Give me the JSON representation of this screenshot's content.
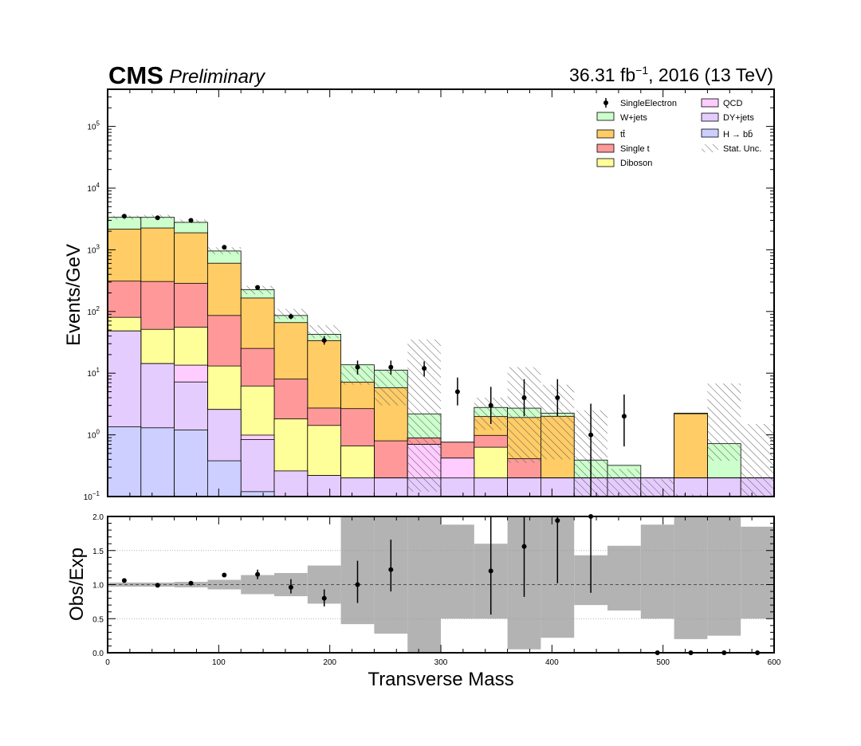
{
  "header": {
    "experiment": "CMS",
    "status": "Preliminary",
    "lumi_value": "36.31 fb",
    "lumi_exp": "−1",
    "lumi_rest": ", 2016 (13 TeV)"
  },
  "legend": {
    "data": "SingleElectron",
    "wjets": "W+jets",
    "ttbar": "tt̄",
    "single_t": "Single t",
    "diboson": "Diboson",
    "qcd": "QCD",
    "dyjets": "DY+jets",
    "hbb": "H → bb̄",
    "stat": "Stat. Unc."
  },
  "colors": {
    "hbb": "#cccfff",
    "dyjets": "#e5ccff",
    "qcd": "#ffccff",
    "diboson": "#ffff99",
    "single_t": "#ff9999",
    "ttbar": "#ffcc66",
    "wjets": "#ccffcc",
    "ratio_band": "#b3b3b3"
  },
  "chart_data": [
    {
      "type": "area",
      "ylabel": "Events/GeV",
      "yscale": "log",
      "ylim": [
        0.1,
        400000
      ],
      "xlim": [
        0,
        600
      ],
      "y_ticks": [
        "10",
        "10",
        "10",
        "10",
        "10",
        "10",
        "10"
      ],
      "y_tick_exps": [
        "−1",
        "0",
        "1",
        "2",
        "3",
        "4",
        "5"
      ],
      "bin_edges": [
        0,
        30,
        60,
        90,
        120,
        150,
        180,
        210,
        240,
        270,
        300,
        330,
        360,
        390,
        420,
        450,
        480,
        510,
        540,
        570,
        600
      ],
      "stack_order": [
        "hbb",
        "dyjets",
        "qcd",
        "diboson",
        "single_t",
        "ttbar",
        "wjets"
      ],
      "series": [
        {
          "name": "H → bb̄",
          "key": "hbb",
          "values": [
            1.35,
            1.3,
            1.2,
            0.38,
            0.12,
            0.1,
            0.1,
            0.1,
            0.1,
            0.1,
            0.1,
            0.1,
            0.1,
            0.1,
            0.1,
            0.1,
            0.1,
            0.1,
            0.1,
            0.1
          ]
        },
        {
          "name": "DY+jets",
          "key": "dyjets",
          "values": [
            47,
            13,
            6,
            2.2,
            0.72,
            0.16,
            0.12,
            0.1,
            0.1,
            0.1,
            0.1,
            0.1,
            0.1,
            0.1,
            0.1,
            0.1,
            0.1,
            0.1,
            0.1,
            0.1
          ]
        },
        {
          "name": "QCD",
          "key": "qcd",
          "values": [
            0,
            0,
            6.3,
            0,
            0.15,
            0,
            0,
            0,
            0,
            0.5,
            0.22,
            0,
            0,
            0,
            0,
            0,
            0,
            0,
            0,
            0
          ]
        },
        {
          "name": "Diboson",
          "key": "diboson",
          "values": [
            32,
            37,
            42,
            10.5,
            5.2,
            1.55,
            1.2,
            0.46,
            0,
            0,
            0,
            0.43,
            0,
            0,
            0,
            0,
            0,
            0,
            0,
            0
          ]
        },
        {
          "name": "Single t",
          "key": "single_t",
          "values": [
            230,
            255,
            230,
            73,
            19,
            6.2,
            1.3,
            2.0,
            0.6,
            0.19,
            0.34,
            0.35,
            0.21,
            0,
            0,
            0,
            0,
            0,
            0,
            0
          ]
        },
        {
          "name": "tt̄",
          "key": "ttbar",
          "values": [
            1850,
            1950,
            1600,
            520,
            140,
            58,
            31,
            4.5,
            5.0,
            0,
            0,
            1.0,
            1.5,
            1.8,
            0,
            0,
            0,
            2.0,
            0,
            0
          ]
        },
        {
          "name": "W+jets",
          "key": "wjets",
          "values": [
            1200,
            1100,
            900,
            350,
            60,
            20,
            9,
            6.5,
            5.4,
            1.3,
            0,
            0.8,
            0.8,
            0.25,
            0.19,
            0.12,
            0,
            0.05,
            0.52,
            0
          ]
        }
      ],
      "stat_unc_bins": [
        {
          "bin": 0,
          "lo": 3100,
          "hi": 3600
        },
        {
          "bin": 1,
          "lo": 3200,
          "hi": 3700
        },
        {
          "bin": 2,
          "lo": 2700,
          "hi": 3100
        },
        {
          "bin": 3,
          "lo": 850,
          "hi": 1100
        },
        {
          "bin": 4,
          "lo": 190,
          "hi": 260
        },
        {
          "bin": 5,
          "lo": 75,
          "hi": 110
        },
        {
          "bin": 6,
          "lo": 37,
          "hi": 60
        },
        {
          "bin": 7,
          "lo": 6.5,
          "hi": 13
        },
        {
          "bin": 8,
          "lo": 3.0,
          "hi": 11.5
        },
        {
          "bin": 9,
          "lo": 0.12,
          "hi": 35
        },
        {
          "bin": 11,
          "lo": 1.2,
          "hi": 4.0
        },
        {
          "bin": 12,
          "lo": 0.35,
          "hi": 12.5
        },
        {
          "bin": 13,
          "lo": 0.4,
          "hi": 6.5
        },
        {
          "bin": 14,
          "lo": 0.1,
          "hi": 2.5
        },
        {
          "bin": 15,
          "lo": 0.1,
          "hi": 0.28
        },
        {
          "bin": 16,
          "lo": 0.1,
          "hi": 0.19
        },
        {
          "bin": 17,
          "lo": 0.1,
          "hi": 0.11
        },
        {
          "bin": 18,
          "lo": 0.38,
          "hi": 6.8
        },
        {
          "bin": 19,
          "lo": 0.1,
          "hi": 1.5
        },
        {
          "bin": 20,
          "lo": 0.1,
          "hi": 0.15
        }
      ],
      "data_points": [
        {
          "name": "SingleElectron",
          "x": 15,
          "y": 3500,
          "lo": 3400,
          "hi": 3600
        },
        {
          "x": 45,
          "y": 3300,
          "lo": 3200,
          "hi": 3400
        },
        {
          "x": 75,
          "y": 3000,
          "lo": 2900,
          "hi": 3100
        },
        {
          "x": 105,
          "y": 1100,
          "lo": 1050,
          "hi": 1150
        },
        {
          "x": 135,
          "y": 245,
          "lo": 230,
          "hi": 260
        },
        {
          "x": 165,
          "y": 83,
          "lo": 75,
          "hi": 92
        },
        {
          "x": 195,
          "y": 34,
          "lo": 29,
          "hi": 40
        },
        {
          "x": 225,
          "y": 12.5,
          "lo": 9.5,
          "hi": 16
        },
        {
          "x": 255,
          "y": 12.5,
          "lo": 9.5,
          "hi": 16
        },
        {
          "x": 285,
          "y": 12,
          "lo": 8.8,
          "hi": 15.5
        },
        {
          "x": 315,
          "y": 5,
          "lo": 3,
          "hi": 8.5
        },
        {
          "x": 345,
          "y": 3,
          "lo": 1.5,
          "hi": 6
        },
        {
          "x": 375,
          "y": 4,
          "lo": 2,
          "hi": 8
        },
        {
          "x": 405,
          "y": 4,
          "lo": 2,
          "hi": 8
        },
        {
          "x": 435,
          "y": 1,
          "lo": 0.1,
          "hi": 3.2
        },
        {
          "x": 465,
          "y": 2,
          "lo": 0.65,
          "hi": 4.5
        }
      ]
    },
    {
      "type": "scatter",
      "xlabel": "Transverse Mass",
      "ylabel": "Obs/Exp",
      "xlim": [
        0,
        600
      ],
      "ylim": [
        0,
        2
      ],
      "x_ticks": [
        "0",
        "100",
        "200",
        "300",
        "400",
        "500",
        "600"
      ],
      "y_ticks": [
        "0.0",
        "0.5",
        "1.0",
        "1.5",
        "2.0"
      ],
      "band": [
        {
          "x0": 0,
          "x1": 30,
          "lo": 0.97,
          "hi": 1.03
        },
        {
          "x0": 30,
          "x1": 60,
          "lo": 0.97,
          "hi": 1.03
        },
        {
          "x0": 60,
          "x1": 90,
          "lo": 0.96,
          "hi": 1.04
        },
        {
          "x0": 90,
          "x1": 120,
          "lo": 0.93,
          "hi": 1.07
        },
        {
          "x0": 120,
          "x1": 150,
          "lo": 0.86,
          "hi": 1.14
        },
        {
          "x0": 150,
          "x1": 180,
          "lo": 0.83,
          "hi": 1.17
        },
        {
          "x0": 180,
          "x1": 210,
          "lo": 0.72,
          "hi": 1.28
        },
        {
          "x0": 210,
          "x1": 240,
          "lo": 0.42,
          "hi": 2.0
        },
        {
          "x0": 240,
          "x1": 270,
          "lo": 0.28,
          "hi": 2.0
        },
        {
          "x0": 270,
          "x1": 300,
          "lo": 0.0,
          "hi": 2.0
        },
        {
          "x0": 300,
          "x1": 330,
          "lo": 0.5,
          "hi": 1.88
        },
        {
          "x0": 330,
          "x1": 360,
          "lo": 0.5,
          "hi": 1.6
        },
        {
          "x0": 360,
          "x1": 390,
          "lo": 0.05,
          "hi": 2.0
        },
        {
          "x0": 390,
          "x1": 420,
          "lo": 0.22,
          "hi": 2.0
        },
        {
          "x0": 420,
          "x1": 450,
          "lo": 0.7,
          "hi": 1.43
        },
        {
          "x0": 450,
          "x1": 480,
          "lo": 0.62,
          "hi": 1.57
        },
        {
          "x0": 480,
          "x1": 510,
          "lo": 0.5,
          "hi": 1.88
        },
        {
          "x0": 510,
          "x1": 540,
          "lo": 0.2,
          "hi": 2.0
        },
        {
          "x0": 540,
          "x1": 570,
          "lo": 0.25,
          "hi": 2.0
        },
        {
          "x0": 570,
          "x1": 600,
          "lo": 0.5,
          "hi": 1.85
        }
      ],
      "points": [
        {
          "x": 15,
          "y": 1.06,
          "lo": 1.06,
          "hi": 1.06
        },
        {
          "x": 45,
          "y": 0.99,
          "lo": 0.99,
          "hi": 0.99
        },
        {
          "x": 75,
          "y": 1.02,
          "lo": 1.02,
          "hi": 1.02
        },
        {
          "x": 105,
          "y": 1.14,
          "lo": 1.14,
          "hi": 1.14
        },
        {
          "x": 135,
          "y": 1.15,
          "lo": 1.08,
          "hi": 1.22
        },
        {
          "x": 165,
          "y": 0.96,
          "lo": 0.87,
          "hi": 1.08
        },
        {
          "x": 195,
          "y": 0.8,
          "lo": 0.68,
          "hi": 0.93
        },
        {
          "x": 225,
          "y": 1.0,
          "lo": 0.73,
          "hi": 1.35
        },
        {
          "x": 255,
          "y": 1.22,
          "lo": 0.9,
          "hi": 1.66
        },
        {
          "x": 345,
          "y": 1.2,
          "lo": 0.56,
          "hi": 2.0
        },
        {
          "x": 375,
          "y": 1.56,
          "lo": 0.82,
          "hi": 2.0
        },
        {
          "x": 405,
          "y": 1.94,
          "lo": 1.02,
          "hi": 2.0
        },
        {
          "x": 435,
          "y": 2.0,
          "lo": 0.88,
          "hi": 2.0
        },
        {
          "x": 495,
          "y": 0.0,
          "lo": 0.0,
          "hi": 0.0
        },
        {
          "x": 525,
          "y": 0.0,
          "lo": 0.0,
          "hi": 0.0
        },
        {
          "x": 555,
          "y": 0.0,
          "lo": 0.0,
          "hi": 0.0
        },
        {
          "x": 585,
          "y": 0.0,
          "lo": 0.0,
          "hi": 0.0
        }
      ]
    }
  ]
}
